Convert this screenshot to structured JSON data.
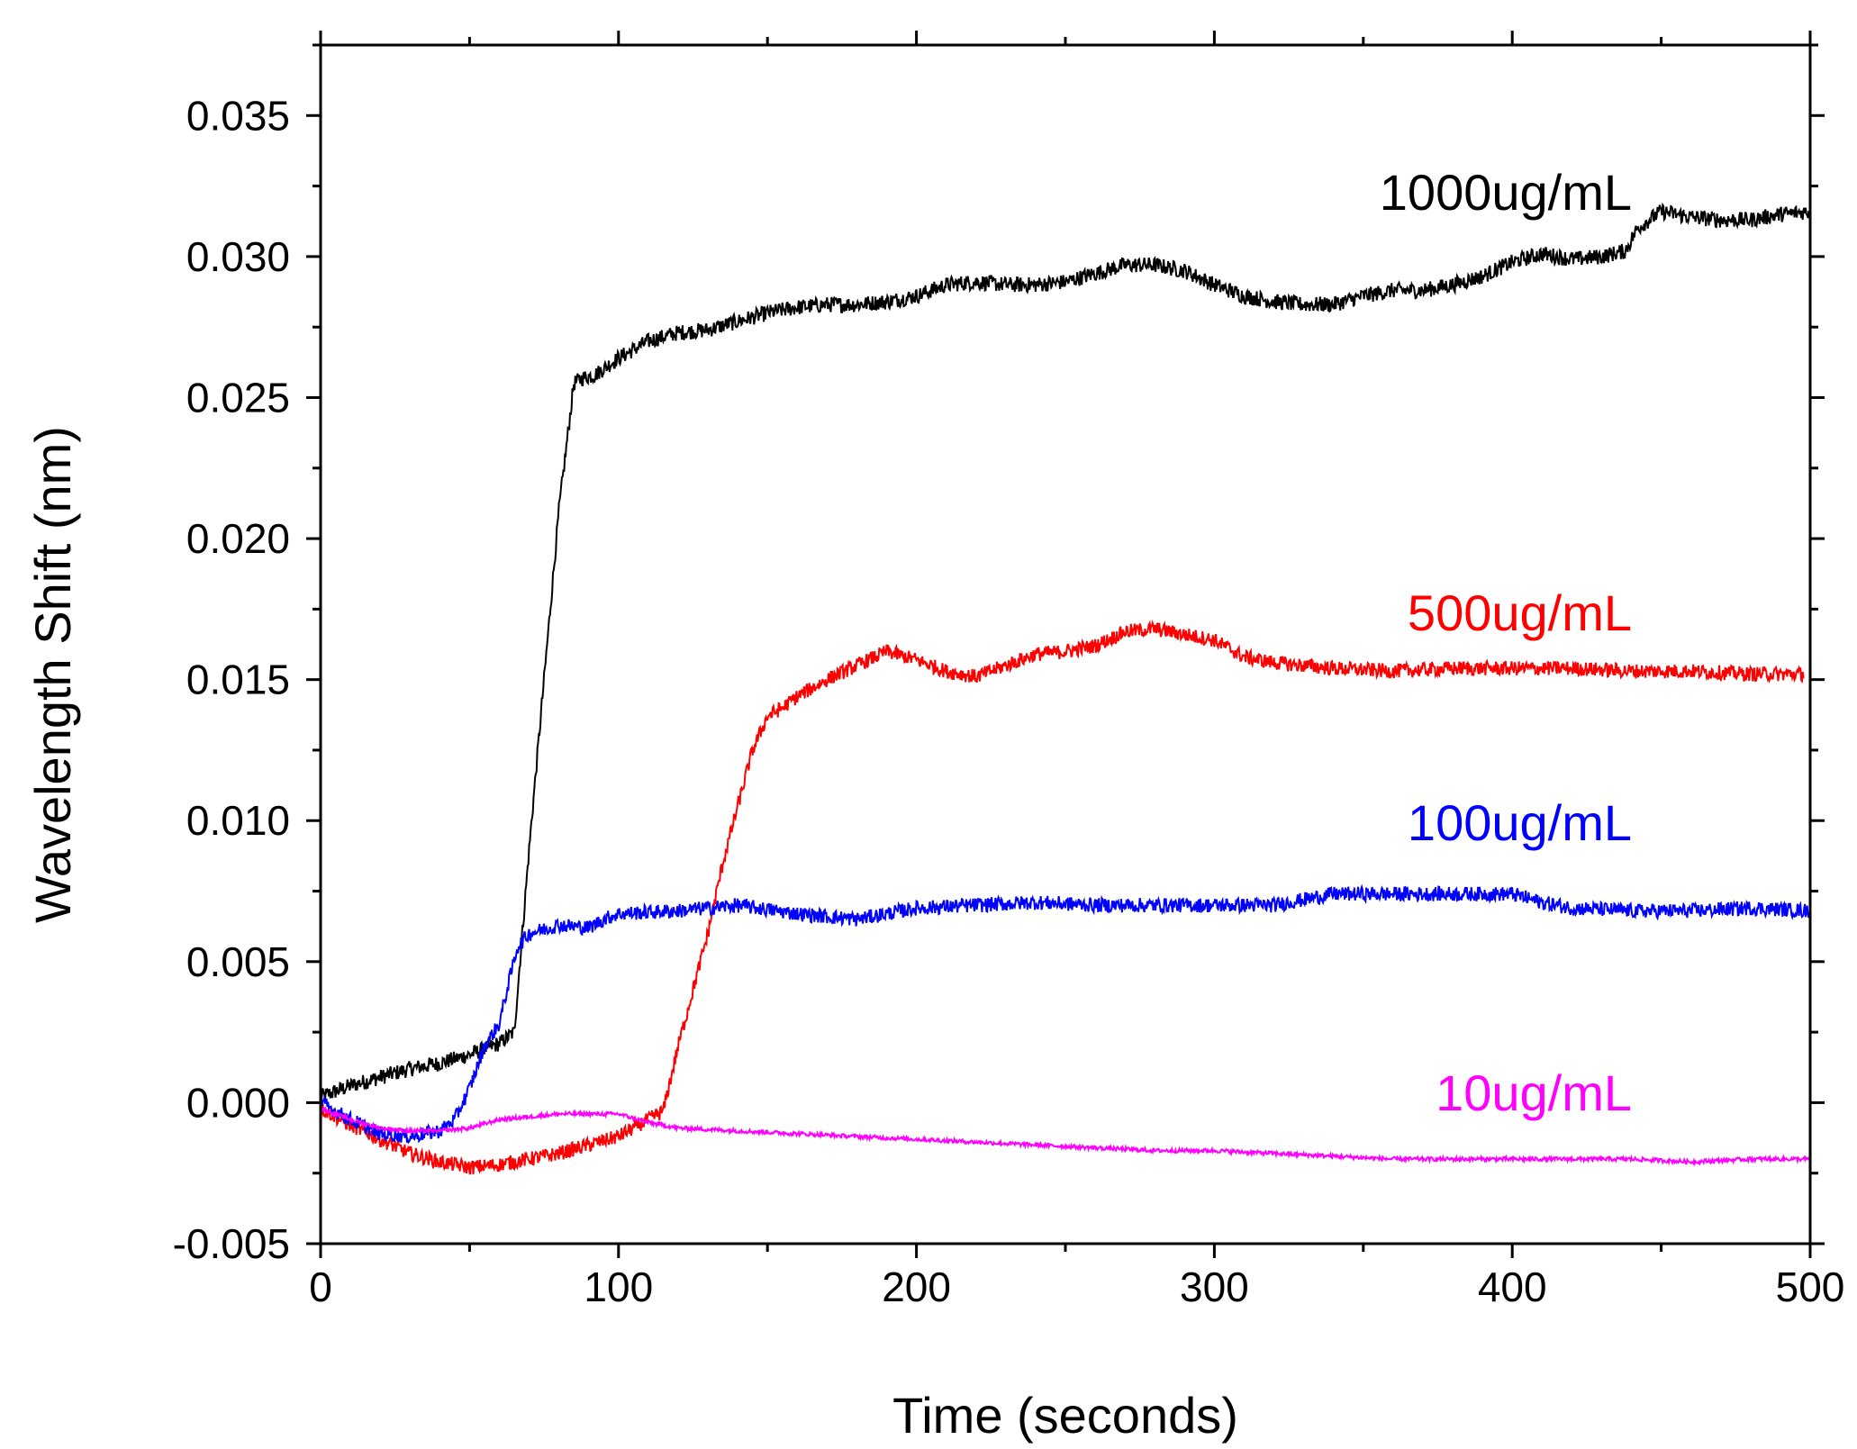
{
  "chart_data": {
    "type": "line",
    "title": "",
    "xlabel": "Time (seconds)",
    "ylabel": "Wavelength Shift (nm)",
    "xlim": [
      0,
      500
    ],
    "ylim": [
      -0.005,
      0.0375
    ],
    "x_ticks": [
      0,
      100,
      200,
      300,
      400,
      500
    ],
    "x_tick_labels": [
      "0",
      "100",
      "200",
      "300",
      "400",
      "500"
    ],
    "y_ticks": [
      -0.005,
      0.0,
      0.005,
      0.01,
      0.015,
      0.02,
      0.025,
      0.03,
      0.035
    ],
    "y_tick_labels": [
      "-0.005",
      "0.000",
      "0.005",
      "0.010",
      "0.015",
      "0.020",
      "0.025",
      "0.030",
      "0.035"
    ],
    "grid": false,
    "series": [
      {
        "name": "1000ug/mL",
        "color": "#000000",
        "noise": 0.00028,
        "x": [
          0,
          10,
          20,
          30,
          40,
          50,
          60,
          65,
          70,
          75,
          80,
          85,
          88,
          92,
          100,
          110,
          120,
          130,
          140,
          150,
          160,
          170,
          180,
          190,
          200,
          210,
          220,
          230,
          240,
          250,
          260,
          270,
          280,
          290,
          300,
          310,
          320,
          330,
          340,
          350,
          360,
          370,
          380,
          390,
          400,
          410,
          420,
          430,
          438,
          442,
          450,
          460,
          470,
          480,
          490,
          500
        ],
        "y": [
          0.0002,
          0.0006,
          0.0009,
          0.0012,
          0.0014,
          0.0017,
          0.0021,
          0.0025,
          0.009,
          0.015,
          0.021,
          0.0255,
          0.0257,
          0.0258,
          0.0264,
          0.027,
          0.0273,
          0.0274,
          0.0277,
          0.028,
          0.0282,
          0.0283,
          0.0283,
          0.0284,
          0.0286,
          0.029,
          0.0291,
          0.029,
          0.029,
          0.0291,
          0.0294,
          0.0297,
          0.0297,
          0.0295,
          0.029,
          0.0286,
          0.0284,
          0.0283,
          0.0283,
          0.0286,
          0.0288,
          0.0288,
          0.029,
          0.0293,
          0.0298,
          0.0301,
          0.0299,
          0.03,
          0.0302,
          0.031,
          0.0316,
          0.0314,
          0.0313,
          0.0313,
          0.0315,
          0.0316
        ]
      },
      {
        "name": "500ug/mL",
        "color": "#ff0000",
        "noise": 0.00026,
        "x": [
          0,
          10,
          20,
          30,
          40,
          50,
          60,
          70,
          80,
          90,
          100,
          105,
          110,
          115,
          120,
          125,
          130,
          135,
          140,
          145,
          150,
          155,
          160,
          170,
          180,
          190,
          200,
          210,
          220,
          230,
          240,
          250,
          260,
          270,
          280,
          290,
          300,
          310,
          320,
          330,
          340,
          360,
          380,
          400,
          420,
          440,
          460,
          480,
          498
        ],
        "y": [
          -0.0002,
          -0.0008,
          -0.0013,
          -0.0018,
          -0.0021,
          -0.0023,
          -0.0022,
          -0.002,
          -0.0018,
          -0.0015,
          -0.0012,
          -0.0009,
          -0.0006,
          -0.0003,
          0.002,
          0.004,
          0.006,
          0.0085,
          0.0105,
          0.0125,
          0.0137,
          0.014,
          0.0144,
          0.015,
          0.0155,
          0.016,
          0.0157,
          0.0153,
          0.0151,
          0.0155,
          0.0159,
          0.016,
          0.0162,
          0.0167,
          0.0168,
          0.0166,
          0.0164,
          0.0158,
          0.0156,
          0.0155,
          0.0154,
          0.0153,
          0.0154,
          0.0154,
          0.0154,
          0.0153,
          0.0153,
          0.0152,
          0.0152
        ]
      },
      {
        "name": "100ug/mL",
        "color": "#0000ff",
        "noise": 0.00026,
        "x": [
          0,
          10,
          20,
          30,
          40,
          45,
          50,
          55,
          60,
          63,
          66,
          70,
          80,
          90,
          95,
          100,
          120,
          140,
          160,
          180,
          200,
          220,
          240,
          260,
          280,
          300,
          320,
          340,
          360,
          380,
          400,
          410,
          420,
          440,
          460,
          480,
          500
        ],
        "y": [
          0.0,
          -0.0006,
          -0.0011,
          -0.0012,
          -0.001,
          -0.0006,
          0.0005,
          0.002,
          0.0028,
          0.0042,
          0.0055,
          0.006,
          0.0063,
          0.0062,
          0.0065,
          0.0067,
          0.0068,
          0.007,
          0.0067,
          0.0065,
          0.0069,
          0.007,
          0.0071,
          0.007,
          0.007,
          0.007,
          0.007,
          0.0074,
          0.0074,
          0.0074,
          0.0074,
          0.0071,
          0.0069,
          0.0068,
          0.0068,
          0.0069,
          0.0068
        ]
      },
      {
        "name": "10ug/mL",
        "color": "#ff00ff",
        "noise": 7e-05,
        "x": [
          0,
          10,
          20,
          30,
          40,
          50,
          60,
          70,
          80,
          90,
          100,
          110,
          120,
          140,
          160,
          180,
          200,
          220,
          240,
          260,
          280,
          300,
          320,
          340,
          360,
          380,
          400,
          420,
          440,
          460,
          480,
          500
        ],
        "y": [
          -0.0002,
          -0.0006,
          -0.0009,
          -0.001,
          -0.001,
          -0.0009,
          -0.0006,
          -0.0005,
          -0.0004,
          -0.0004,
          -0.0004,
          -0.0007,
          -0.0009,
          -0.001,
          -0.0011,
          -0.0012,
          -0.0013,
          -0.0014,
          -0.0015,
          -0.0016,
          -0.0017,
          -0.0017,
          -0.0018,
          -0.0019,
          -0.002,
          -0.002,
          -0.002,
          -0.002,
          -0.002,
          -0.0021,
          -0.002,
          -0.002
        ]
      }
    ],
    "annotations": [
      {
        "text": "1000ug/mL",
        "color": "#000000"
      },
      {
        "text": "500ug/mL",
        "color": "#ff0000"
      },
      {
        "text": "100ug/mL",
        "color": "#0000ff"
      },
      {
        "text": "10ug/mL",
        "color": "#ff00ff"
      }
    ]
  }
}
